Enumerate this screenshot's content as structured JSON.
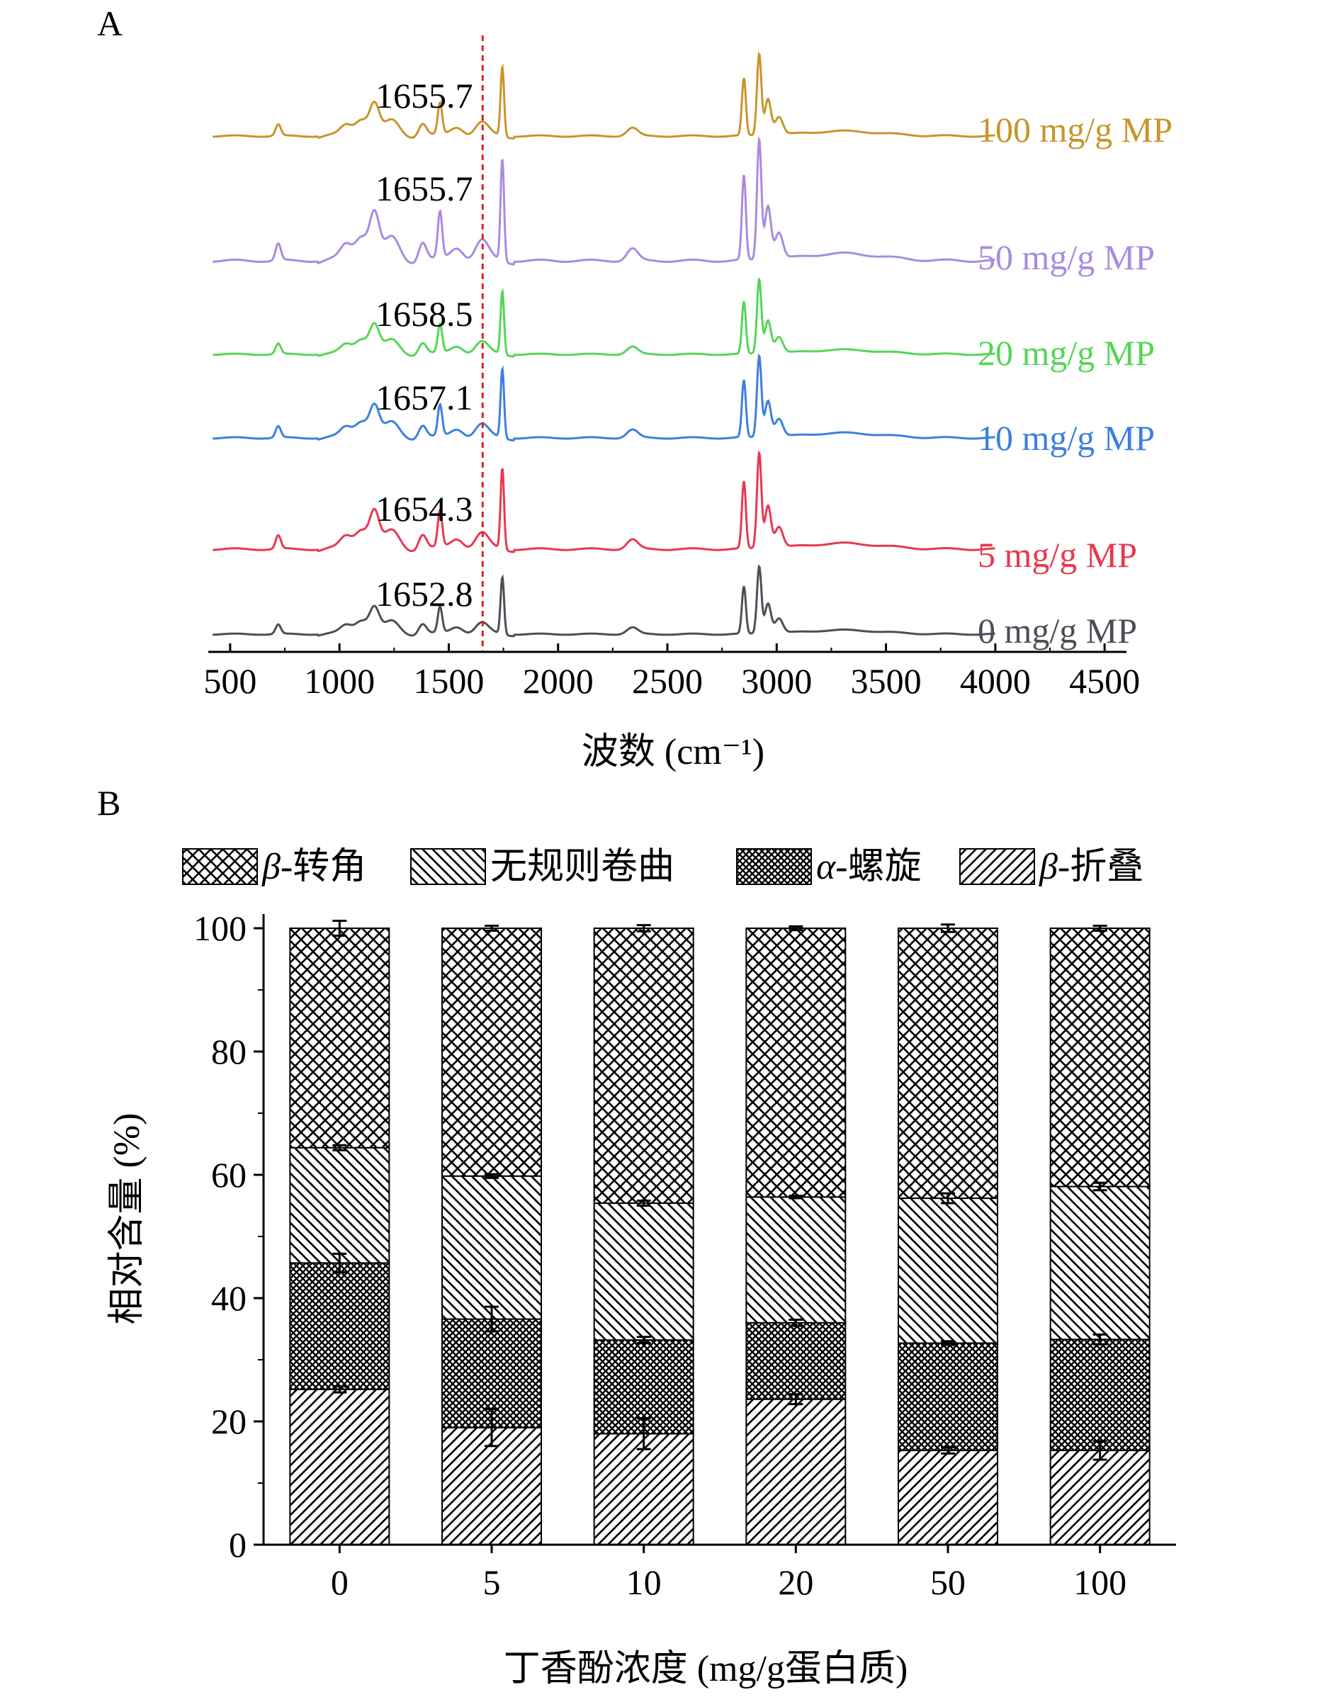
{
  "chart_data": [
    {
      "panel": "A",
      "type": "line",
      "xlabel": "波数 (cm⁻¹)",
      "x_ticks": [
        500,
        1000,
        1500,
        2000,
        2500,
        3000,
        3500,
        4000,
        4500
      ],
      "xlim": [
        400,
        4600
      ],
      "marker_line_x": 1655,
      "series": [
        {
          "name": "100 mg/g MP",
          "color": "#c8952a",
          "peak_label": "1655.7"
        },
        {
          "name": "50 mg/g MP",
          "color": "#a98be0",
          "peak_label": "1655.7"
        },
        {
          "name": "20 mg/g MP",
          "color": "#55d655",
          "peak_label": "1658.5"
        },
        {
          "name": "10 mg/g MP",
          "color": "#3c7fe0",
          "peak_label": "1657.1"
        },
        {
          "name": "5 mg/g MP",
          "color": "#e8384f",
          "peak_label": "1654.3"
        },
        {
          "name": "0 mg/g MP",
          "color": "#4a4f57",
          "peak_label": "1652.8"
        }
      ]
    },
    {
      "panel": "B",
      "type": "bar",
      "stacked": true,
      "categories": [
        "0",
        "5",
        "10",
        "20",
        "50",
        "100"
      ],
      "xlabel": "丁香酚浓度 (mg/g蛋白质)",
      "ylabel": "相对含量 (%)",
      "ylim": [
        0,
        100
      ],
      "y_ticks": [
        0,
        20,
        40,
        60,
        80,
        100
      ],
      "legend": [
        {
          "italic": "β",
          "text": "-转角",
          "pattern": "crosshatch"
        },
        {
          "italic": "",
          "text": "无规则卷曲",
          "pattern": "back-diagonal"
        },
        {
          "italic": "α",
          "text": "-螺旋",
          "pattern": "dense-crosshatch"
        },
        {
          "italic": "β",
          "text": "-折叠",
          "pattern": "forward-diagonal"
        }
      ],
      "series": [
        {
          "name": "β-折叠",
          "values": [
            25.2,
            19.0,
            18.0,
            23.6,
            15.3,
            15.3
          ],
          "errors": [
            0.5,
            3.0,
            2.5,
            0.8,
            0.5,
            1.5
          ]
        },
        {
          "name": "α-螺旋",
          "values": [
            20.5,
            17.6,
            15.2,
            12.4,
            17.4,
            18.0
          ],
          "errors": [
            1.5,
            2.0,
            0.5,
            0.5,
            0.3,
            0.8
          ]
        },
        {
          "name": "无规则卷曲",
          "values": [
            18.7,
            23.2,
            22.2,
            20.4,
            23.5,
            24.8
          ],
          "errors": [
            0.4,
            0.3,
            0.4,
            0.2,
            0.8,
            0.6
          ]
        },
        {
          "name": "β-转角",
          "values": [
            35.6,
            40.2,
            44.6,
            43.6,
            43.8,
            41.9
          ],
          "errors": [
            1.2,
            0.4,
            0.5,
            0.3,
            0.6,
            0.4
          ]
        }
      ]
    }
  ],
  "panel_labels": [
    "A",
    "B"
  ]
}
